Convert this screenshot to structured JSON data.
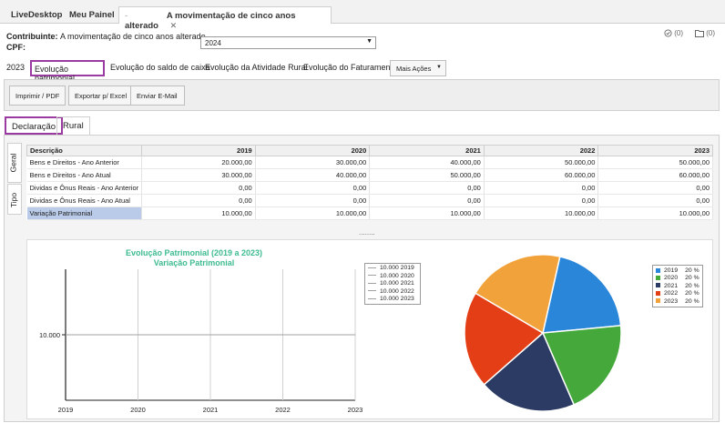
{
  "top_tabs": {
    "tab1": "LiveDesktop",
    "tab2": "Meu Painel",
    "tab3_prefix": "-",
    "tab3": "A movimentação de cinco anos alterado",
    "close": "✕"
  },
  "header": {
    "contribuinte_label": "Contribuinte:",
    "contribuinte_value": "A movimentação de cinco anos alterado",
    "cpf_label": "CPF:",
    "year_selected": "2024",
    "tasks_count": "(0)",
    "files_count": "(0)"
  },
  "main_tabs": {
    "year": "2023",
    "tab1": "Evolução patrimonial",
    "tab2": "Evolução do saldo de caixa",
    "tab3": "Evolução da Atividade Rural",
    "tab4": "Evolução do Faturamento",
    "more_actions": "Mais Ações"
  },
  "toolbar": {
    "print": "Imprimir / PDF",
    "export": "Exportar p/ Excel",
    "email": "Enviar E-Mail"
  },
  "sub_tabs": {
    "declaracao": "Declaração",
    "rural": "Rural"
  },
  "side_tabs": {
    "geral": "Geral",
    "tipo": "Tipo"
  },
  "table": {
    "headers": [
      "Descrição",
      "2019",
      "2020",
      "2021",
      "2022",
      "2023"
    ],
    "rows": [
      [
        "Bens e Direitos - Ano Anterior",
        "20.000,00",
        "30.000,00",
        "40.000,00",
        "50.000,00",
        "50.000,00"
      ],
      [
        "Bens e Direitos - Ano Atual",
        "30.000,00",
        "40.000,00",
        "50.000,00",
        "60.000,00",
        "60.000,00"
      ],
      [
        "Dividas e Ônus Reais - Ano Anterior",
        "0,00",
        "0,00",
        "0,00",
        "0,00",
        "0,00"
      ],
      [
        "Dividas e Ônus Reais - Ano Atual",
        "0,00",
        "0,00",
        "0,00",
        "0,00",
        "0,00"
      ],
      [
        "Variação Patrimonial",
        "10.000,00",
        "10.000,00",
        "10.000,00",
        "10.000,00",
        "10.000,00"
      ]
    ]
  },
  "splitter": "........",
  "chart_data": [
    {
      "type": "line",
      "title": "Evolução Patrimonial (2019 a 2023)",
      "subtitle": "Variação Patrimonial",
      "categories": [
        "2019",
        "2020",
        "2021",
        "2022",
        "2023"
      ],
      "values": [
        10000,
        10000,
        10000,
        10000,
        10000
      ],
      "ytick_label": "10.000",
      "legend": [
        "10.000  2019",
        "10.000  2020",
        "10.000  2021",
        "10.000  2022",
        "10.000  2023"
      ],
      "legend_position": "top-right",
      "color_line": "#a0a0a0",
      "color_title": "#3dbb8f"
    },
    {
      "type": "pie",
      "labels": [
        "2019",
        "2020",
        "2021",
        "2022",
        "2023"
      ],
      "values": [
        20,
        20,
        20,
        20,
        20
      ],
      "percent_labels": [
        "20 %",
        "20 %",
        "20 %",
        "20 %",
        "20 %"
      ],
      "colors": [
        "#2a86d8",
        "#45a83a",
        "#2b3b63",
        "#e43e16",
        "#f2a23a"
      ],
      "legend_position": "right"
    }
  ]
}
